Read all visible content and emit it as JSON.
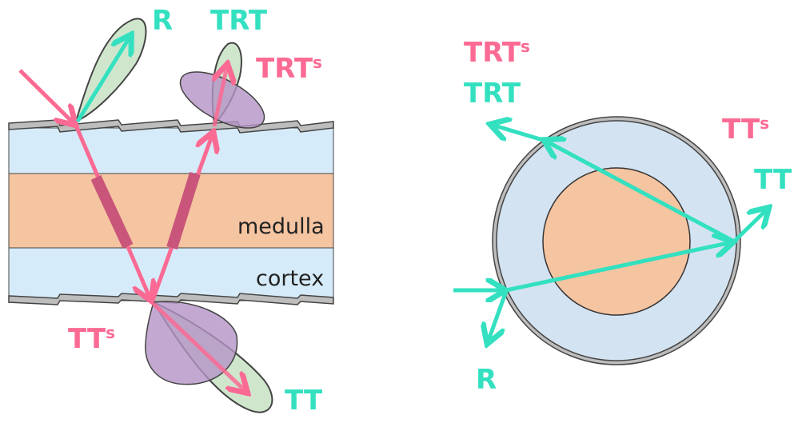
{
  "colors": {
    "teal": "#33e0c0",
    "pink": "#fb6a93",
    "dark_pink": "#c9557a",
    "cortex": "#d6ebf9",
    "medulla": "#f5c4a1",
    "lobe_green": "#cfe6cd",
    "lobe_purple": "#b493c6",
    "cuticle": "#bdbdbd"
  },
  "left": {
    "labels": {
      "r": "R",
      "trt": "TRT",
      "trts_main": "TRT",
      "trts_sup": "s",
      "tts_main": "TT",
      "tts_sup": "s",
      "tt": "TT"
    },
    "layers": {
      "medulla": "medulla",
      "cortex": "cortex"
    }
  },
  "right": {
    "labels": {
      "trts_main": "TRT",
      "trts_sup": "s",
      "trt": "TRT",
      "tts_main": "TT",
      "tts_sup": "s",
      "tt": "TT",
      "r": "R"
    }
  }
}
